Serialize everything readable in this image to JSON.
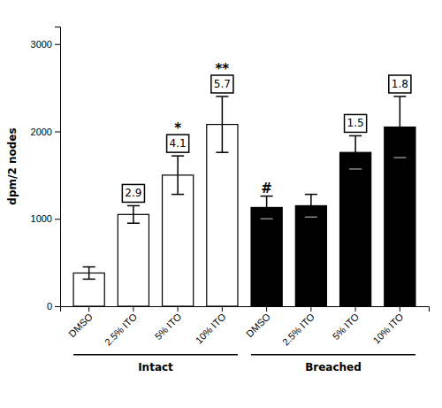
{
  "chart_data": {
    "type": "bar",
    "categories": [
      "DMSO",
      "2.5% ITO",
      "5% ITO",
      "10% ITO",
      "DMSO",
      "2.5% ITO",
      "5% ITO",
      "10% ITO"
    ],
    "values": [
      380,
      1050,
      1500,
      2080,
      1130,
      1150,
      1760,
      2050
    ],
    "errors": [
      70,
      100,
      220,
      320,
      130,
      130,
      190,
      350
    ],
    "colors": [
      "white",
      "white",
      "white",
      "white",
      "black",
      "black",
      "black",
      "black"
    ],
    "stimulation_indices": [
      null,
      "2.9",
      "4.1",
      "5.7",
      null,
      null,
      "1.5",
      "1.8"
    ],
    "significance": [
      null,
      null,
      "*",
      "**",
      "#",
      null,
      null,
      null
    ],
    "groups": [
      {
        "name": "Intact",
        "count": 4
      },
      {
        "name": "Breached",
        "count": 4
      }
    ],
    "ylabel": "dpm/2 nodes",
    "ylim": [
      0,
      3200
    ],
    "yticks": [
      0,
      1000,
      2000,
      3000
    ]
  }
}
